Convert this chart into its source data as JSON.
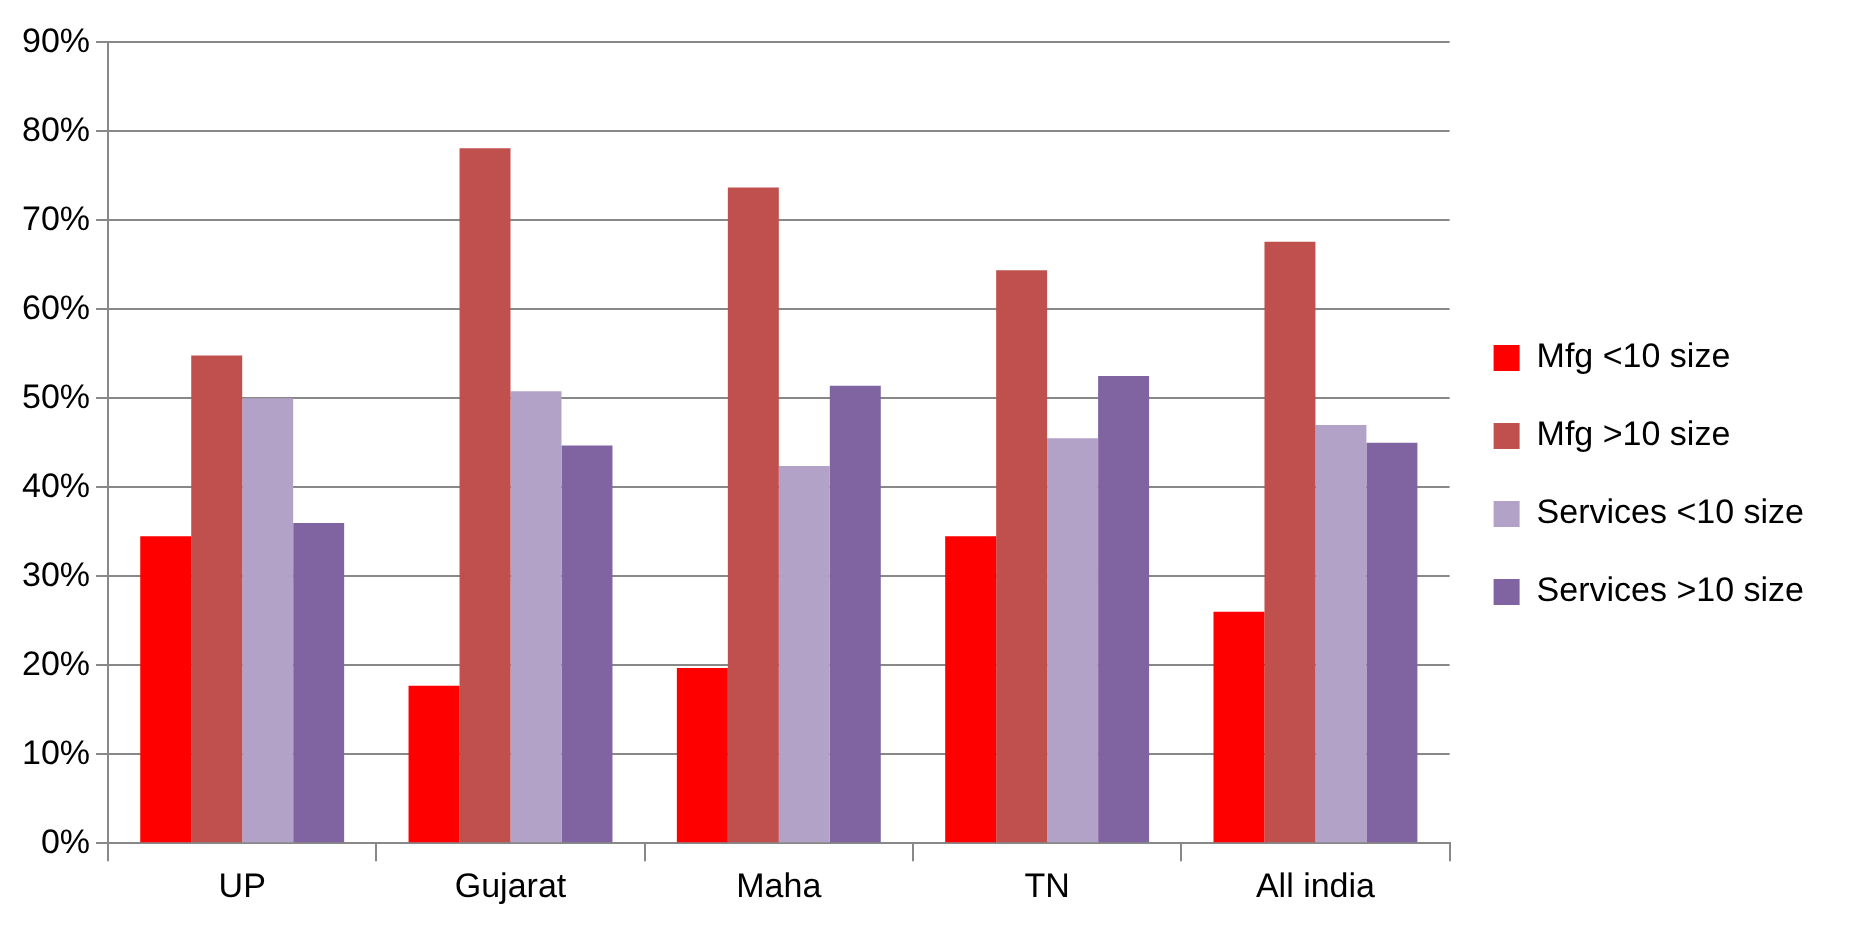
{
  "chart_data": {
    "type": "bar",
    "categories": [
      "UP",
      "Gujarat",
      "Maha",
      "TN",
      "All india"
    ],
    "series": [
      {
        "name": "Mfg <10 size",
        "color": "#ff0000",
        "values": [
          34.5,
          17.7,
          19.7,
          34.5,
          26
        ]
      },
      {
        "name": "Mfg >10 size",
        "color": "#c0504d",
        "values": [
          54.8,
          78.1,
          73.7,
          64.4,
          67.6
        ]
      },
      {
        "name": "Services <10 size",
        "color": "#b3a2c7",
        "values": [
          50,
          50.8,
          42.4,
          45.5,
          47
        ]
      },
      {
        "name": "Services >10 size",
        "color": "#8064a2",
        "values": [
          36,
          44.7,
          51.4,
          52.5,
          45
        ]
      }
    ],
    "ylim": [
      0,
      90
    ],
    "yticks": [
      {
        "value": 0,
        "label": "0%"
      },
      {
        "value": 10,
        "label": "10%"
      },
      {
        "value": 20,
        "label": "20%"
      },
      {
        "value": 30,
        "label": "30%"
      },
      {
        "value": 40,
        "label": "40%"
      },
      {
        "value": 50,
        "label": "50%"
      },
      {
        "value": 60,
        "label": "60%"
      },
      {
        "value": 70,
        "label": "70%"
      },
      {
        "value": 80,
        "label": "80%"
      },
      {
        "value": 90,
        "label": "90%"
      }
    ],
    "grid": "y",
    "legend": "right"
  }
}
